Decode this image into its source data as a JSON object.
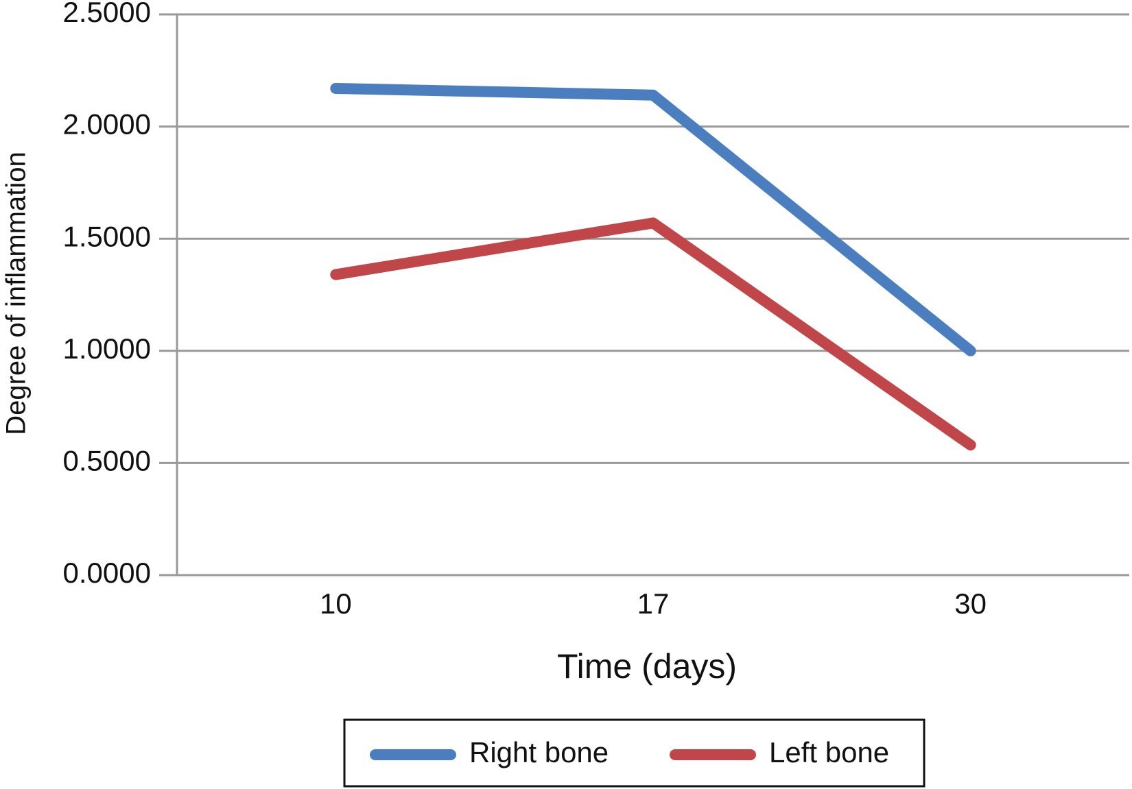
{
  "chart_data": {
    "type": "line",
    "x_label": "Time (days)",
    "y_label": "Degree of inflammation",
    "categories": [
      "10",
      "17",
      "30"
    ],
    "series": [
      {
        "name": "Right bone",
        "color": "#4a7ebf",
        "values": [
          2.17,
          2.14,
          1.0
        ]
      },
      {
        "name": "Left bone",
        "color": "#c0464a",
        "values": [
          1.34,
          1.57,
          0.58
        ]
      }
    ],
    "ylim": [
      0,
      2.5
    ],
    "yticks": [
      {
        "value": 0,
        "label": "0.0000"
      },
      {
        "value": 0.5,
        "label": "0.5000"
      },
      {
        "value": 1,
        "label": "1.0000"
      },
      {
        "value": 1.5,
        "label": "1.5000"
      },
      {
        "value": 2,
        "label": "2.0000"
      },
      {
        "value": 2.5,
        "label": "2.5000"
      }
    ],
    "grid": true,
    "legend": "bottom"
  }
}
